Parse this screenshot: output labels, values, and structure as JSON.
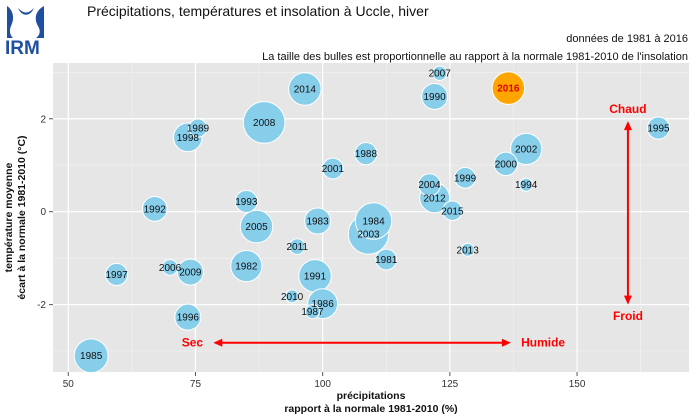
{
  "header": {
    "logo_text": "IRM",
    "title": "Précipitations, températures et insolation à Uccle, hiver",
    "period": "données de 1981 à 2016",
    "bubble_note": "La taille des bulles est proportionnelle au rapport à la normale 1981-2010 de l'insolation"
  },
  "colors": {
    "panel": "#e6e6e6",
    "grid": "#ffffff",
    "bubble": "#87ceeb",
    "highlight": "#ffa500",
    "arrow": "#ff0000",
    "brand": "#1f4fa0"
  },
  "chart_data": {
    "type": "scatter",
    "xlabel": [
      "précipitations",
      "rapport à la normale 1981-2010 (%)"
    ],
    "ylabel": [
      "température moyenne",
      "écart à la normale 1981-2010 (°C)"
    ],
    "xlim": [
      47,
      172
    ],
    "ylim": [
      -3.45,
      3.2
    ],
    "xticks": [
      50,
      75,
      100,
      125,
      150
    ],
    "yticks": [
      -2,
      0,
      2
    ],
    "ytick_labels": [
      "-2",
      "0",
      "2"
    ],
    "grid": true,
    "highlight_year": "2016",
    "points": [
      {
        "year": "1985",
        "x": 54.5,
        "y": -3.1,
        "size": 1.3
      },
      {
        "year": "1992",
        "x": 67.0,
        "y": 0.06,
        "size": 0.95
      },
      {
        "year": "1997",
        "x": 59.5,
        "y": -1.35,
        "size": 0.85
      },
      {
        "year": "2006",
        "x": 70.0,
        "y": -1.2,
        "size": 0.6
      },
      {
        "year": "2009",
        "x": 74.0,
        "y": -1.3,
        "size": 1.0
      },
      {
        "year": "1996",
        "x": 73.5,
        "y": -2.27,
        "size": 1.0
      },
      {
        "year": "1998",
        "x": 73.5,
        "y": 1.6,
        "size": 1.1
      },
      {
        "year": "1989",
        "x": 75.5,
        "y": 1.8,
        "size": 0.7
      },
      {
        "year": "2008",
        "x": 88.5,
        "y": 1.92,
        "size": 1.6
      },
      {
        "year": "2014",
        "x": 96.5,
        "y": 2.64,
        "size": 1.25
      },
      {
        "year": "1993",
        "x": 85.0,
        "y": 0.22,
        "size": 0.85
      },
      {
        "year": "2005",
        "x": 87.0,
        "y": -0.32,
        "size": 1.25
      },
      {
        "year": "1982",
        "x": 85.0,
        "y": -1.17,
        "size": 1.2
      },
      {
        "year": "2011",
        "x": 95.0,
        "y": -0.75,
        "size": 0.6
      },
      {
        "year": "2010",
        "x": 94.0,
        "y": -1.82,
        "size": 0.5
      },
      {
        "year": "1983",
        "x": 99.0,
        "y": -0.2,
        "size": 1.0
      },
      {
        "year": "1991",
        "x": 98.5,
        "y": -1.38,
        "size": 1.25
      },
      {
        "year": "1986",
        "x": 100.0,
        "y": -1.98,
        "size": 1.15
      },
      {
        "year": "1987",
        "x": 98.0,
        "y": -2.15,
        "size": 0.55
      },
      {
        "year": "2001",
        "x": 102.0,
        "y": 0.93,
        "size": 0.8
      },
      {
        "year": "1988",
        "x": 108.5,
        "y": 1.25,
        "size": 0.85
      },
      {
        "year": "1984",
        "x": 110.0,
        "y": -0.2,
        "size": 1.4
      },
      {
        "year": "2003",
        "x": 109.0,
        "y": -0.48,
        "size": 1.55
      },
      {
        "year": "1981",
        "x": 112.5,
        "y": -1.03,
        "size": 0.8
      },
      {
        "year": "2007",
        "x": 123.0,
        "y": 2.98,
        "size": 0.55
      },
      {
        "year": "1990",
        "x": 122.0,
        "y": 2.48,
        "size": 1.0
      },
      {
        "year": "2016",
        "x": 136.5,
        "y": 2.66,
        "size": 1.25
      },
      {
        "year": "2004",
        "x": 121.0,
        "y": 0.58,
        "size": 0.85
      },
      {
        "year": "2012",
        "x": 122.0,
        "y": 0.3,
        "size": 1.15
      },
      {
        "year": "2015",
        "x": 125.5,
        "y": 0.02,
        "size": 0.75
      },
      {
        "year": "2013",
        "x": 128.5,
        "y": -0.82,
        "size": 0.5
      },
      {
        "year": "1999",
        "x": 128.0,
        "y": 0.73,
        "size": 0.8
      },
      {
        "year": "2000",
        "x": 136.0,
        "y": 1.03,
        "size": 0.9
      },
      {
        "year": "2002",
        "x": 140.0,
        "y": 1.35,
        "size": 1.2
      },
      {
        "year": "1994",
        "x": 140.0,
        "y": 0.58,
        "size": 0.5
      },
      {
        "year": "1995",
        "x": 166.0,
        "y": 1.8,
        "size": 0.85
      }
    ],
    "annotations": {
      "warm": "Chaud",
      "cold": "Froid",
      "dry": "Sec",
      "wet": "Humide"
    }
  }
}
